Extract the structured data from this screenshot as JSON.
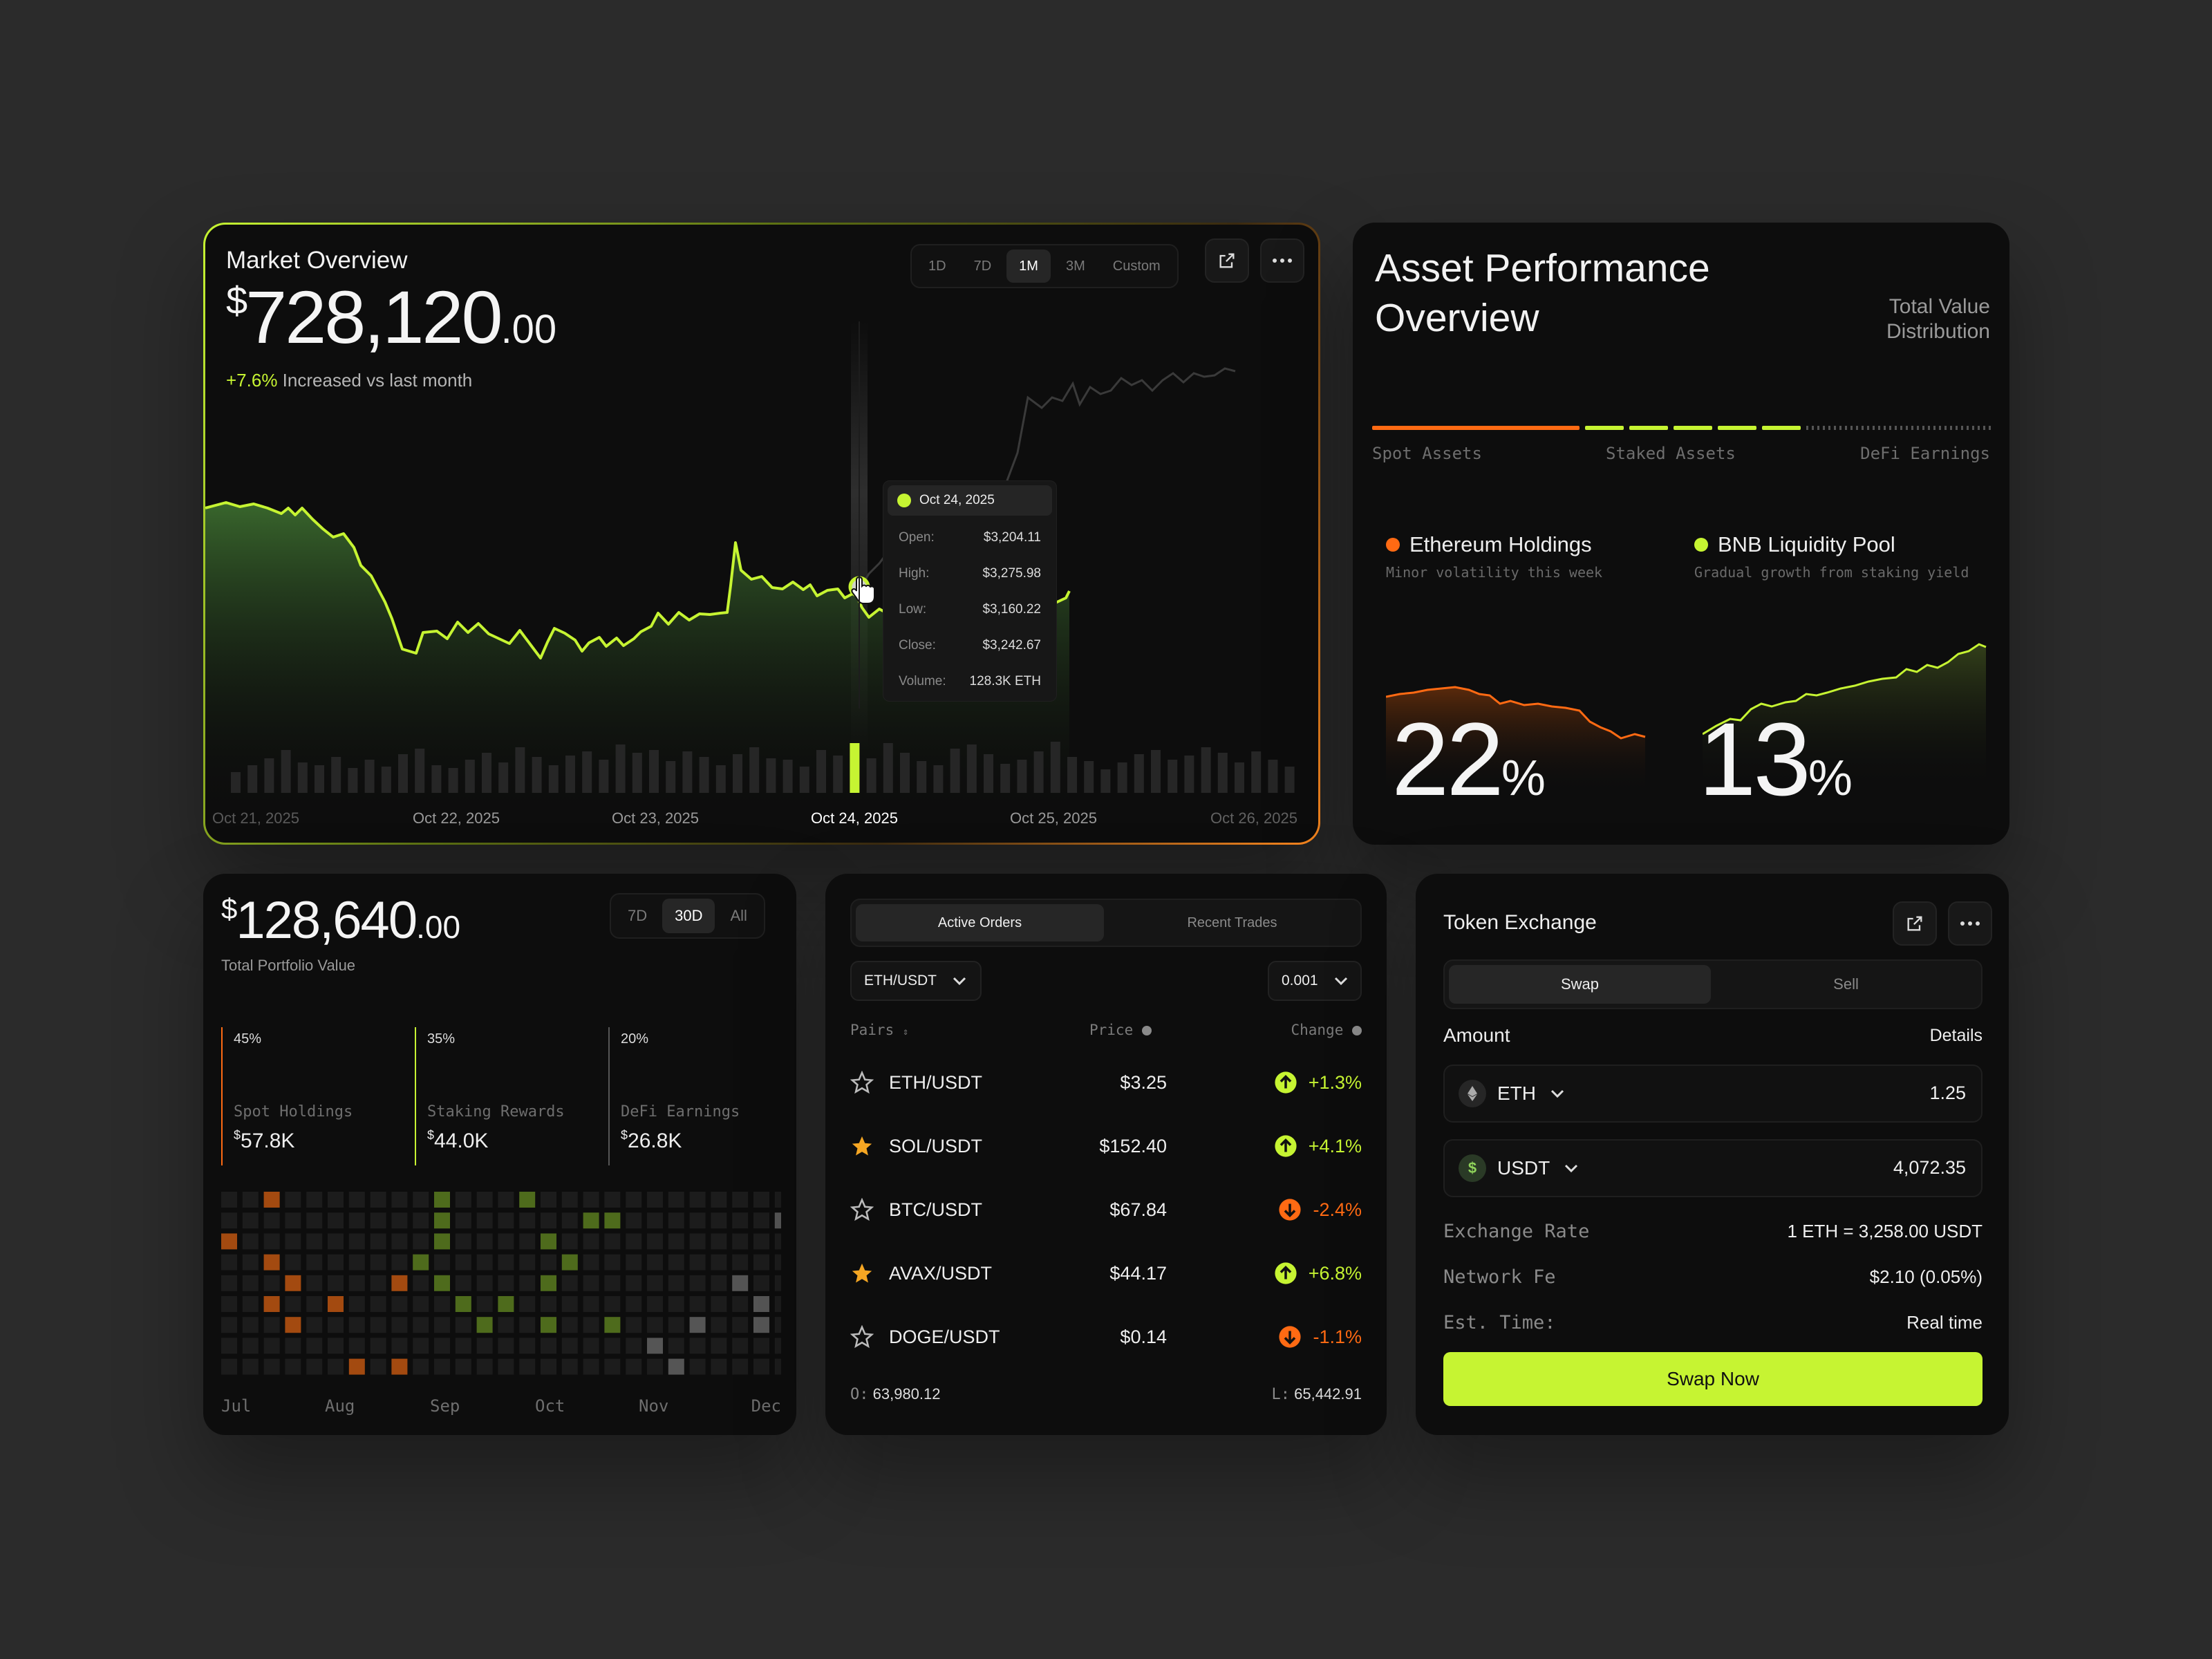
{
  "market": {
    "title": "Market Overview",
    "currency": "$",
    "value_main": "728,120",
    "value_cents": ".00",
    "change": "+7.6%",
    "change_text": " Increased vs last month",
    "ranges": [
      "1D",
      "7D",
      "1M",
      "3M",
      "Custom"
    ],
    "active_range": "1M",
    "dates": [
      "Oct 21, 2025",
      "Oct 22, 2025",
      "Oct 23, 2025",
      "Oct 24, 2025",
      "Oct 25, 2025",
      "Oct 26, 2025"
    ],
    "active_date": "Oct 24, 2025",
    "tooltip": {
      "date": "Oct 24, 2025",
      "open_label": "Open:",
      "open": "$3,204.11",
      "high_label": "High:",
      "high": "$3,275.98",
      "low_label": "Low:",
      "low": "$3,160.22",
      "close_label": "Close:",
      "close": "$3,242.67",
      "volume_label": "Volume:",
      "volume": "128.3K ETH"
    },
    "accent": "#c6f432"
  },
  "asset": {
    "title_line1": "Asset Performance",
    "title_line2": "Overview",
    "subtitle_line1": "Total Value",
    "subtitle_line2": "Distribution",
    "labels": [
      "Spot Assets",
      "Staked Assets",
      "DeFi Earnings"
    ],
    "items": [
      {
        "name": "Ethereum Holdings",
        "desc": "Minor volatility this week",
        "value": "22",
        "unit": "%",
        "color": "#ff6a13"
      },
      {
        "name": "BNB Liquidity Pool",
        "desc": "Gradual growth from staking yield",
        "value": "13",
        "unit": "%",
        "color": "#c6f432"
      }
    ]
  },
  "portfolio": {
    "currency": "$",
    "value_main": "128,640",
    "value_cents": ".00",
    "label": "Total Portfolio Value",
    "ranges": [
      "7D",
      "30D",
      "All"
    ],
    "active_range": "30D",
    "breakdown": [
      {
        "pct": "45%",
        "name": "Spot Holdings",
        "cur": "$",
        "amount": "57.8K",
        "color": "#ff6a13"
      },
      {
        "pct": "35%",
        "name": "Staking Rewards",
        "cur": "$",
        "amount": "44.0K",
        "color": "#c6f432"
      },
      {
        "pct": "20%",
        "name": "DeFi Earnings",
        "cur": "$",
        "amount": "26.8K",
        "color": "#777777"
      }
    ],
    "months": [
      "Jul",
      "Aug",
      "Sep",
      "Oct",
      "Nov",
      "Dec"
    ]
  },
  "orders": {
    "tabs": [
      "Active Orders",
      "Recent Trades"
    ],
    "active_tab": "Active Orders",
    "pair_select": "ETH/USDT",
    "step_select": "0.001",
    "headers": {
      "pairs": "Pairs",
      "price": "Price",
      "change": "Change"
    },
    "rows": [
      {
        "pair": "ETH/USDT",
        "price": "$3.25",
        "change": "+1.3%",
        "starred": false,
        "up": true
      },
      {
        "pair": "SOL/USDT",
        "price": "$152.40",
        "change": "+4.1%",
        "starred": true,
        "up": true
      },
      {
        "pair": "BTC/USDT",
        "price": "$67.84",
        "change": "-2.4%",
        "starred": false,
        "up": false
      },
      {
        "pair": "AVAX/USDT",
        "price": "$44.17",
        "change": "+6.8%",
        "starred": true,
        "up": true
      },
      {
        "pair": "DOGE/USDT",
        "price": "$0.14",
        "change": "-1.1%",
        "starred": false,
        "up": false
      }
    ],
    "footer_o_label": "O:",
    "footer_o": "63,980.12",
    "footer_l_label": "L:",
    "footer_l": "65,442.91"
  },
  "exchange": {
    "title": "Token Exchange",
    "tabs": [
      "Swap",
      "Sell"
    ],
    "active_tab": "Swap",
    "amount_label": "Amount",
    "details_label": "Details",
    "from_token": "ETH",
    "from_amount": "1.25",
    "to_token": "USDT",
    "to_amount": "4,072.35",
    "rate_label": "Exchange Rate",
    "rate": "1 ETH = 3,258.00 USDT",
    "fee_label": "Network Fe",
    "fee": "$2.10 (0.05%)",
    "time_label": "Est. Time:",
    "time": "Real time",
    "button": "Swap Now"
  },
  "colors": {
    "lime": "#c6f432",
    "orange": "#ff6a13",
    "card": "#0d0d0d",
    "bg": "#2b2b2b"
  }
}
